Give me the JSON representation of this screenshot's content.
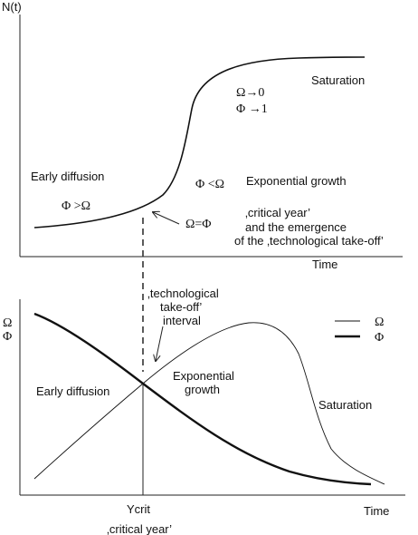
{
  "top_panel": {
    "y_axis_label": "N(t)",
    "x_axis_label": "Time",
    "labels": {
      "saturation": "Saturation",
      "omega_to_zero": "Ω→0",
      "phi_to_one": "Φ →1",
      "early_diffusion": "Early diffusion",
      "phi_greater_omega": "Φ >Ω",
      "phi_less_omega": "Φ <Ω",
      "exponential_growth": "Exponential growth",
      "omega_equals_phi": "Ω=Φ",
      "critical_year_line1": "‚critical year’",
      "critical_year_line2": "and the emergence",
      "critical_year_line3": "of the ‚technological take-off’"
    }
  },
  "bottom_panel": {
    "y_axis_label_omega": "Ω",
    "y_axis_label_phi": "Φ",
    "x_axis_label": "Time",
    "labels": {
      "takeoff_line1": "‚technological",
      "takeoff_line2": "take-off’",
      "takeoff_line3": "interval",
      "exponential_line1": "Exponential",
      "exponential_line2": "growth",
      "early_diffusion": "Early diffusion",
      "saturation": "Saturation",
      "ycrit": "Ycrit",
      "critical_year": "‚critical year’"
    },
    "legend": {
      "omega": "Ω",
      "phi": "Φ"
    }
  }
}
